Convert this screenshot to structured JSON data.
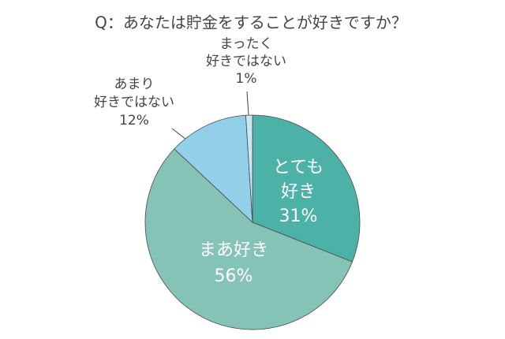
{
  "chart_data": {
    "type": "pie",
    "title": "Q：あなたは貯金をすることが好きですか？",
    "categories": [
      [
        "とても",
        "好き"
      ],
      [
        "まあ好き"
      ],
      [
        "あまり",
        "好きではない"
      ],
      [
        "まったく",
        "好きではない"
      ]
    ],
    "values": [
      31,
      56,
      12,
      1
    ],
    "value_labels": [
      "31%",
      "56%",
      "12%",
      "1%"
    ],
    "colors": [
      "#4cb1a6",
      "#86c3b7",
      "#92cfe8",
      "#c9e6f1"
    ],
    "start_angle": 0,
    "direction": "clockwise"
  }
}
